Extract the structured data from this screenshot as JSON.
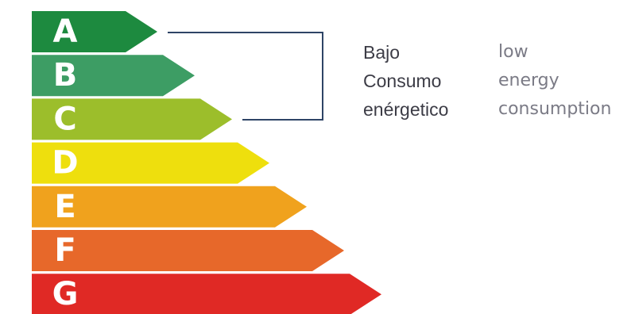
{
  "ratings": [
    {
      "letter": "A",
      "color": "#1d8a3f"
    },
    {
      "letter": "B",
      "color": "#3d9d64"
    },
    {
      "letter": "C",
      "color": "#9cbe2b"
    },
    {
      "letter": "D",
      "color": "#eedf0d"
    },
    {
      "letter": "E",
      "color": "#f0a21d"
    },
    {
      "letter": "F",
      "color": "#e7682a"
    },
    {
      "letter": "G",
      "color": "#e02925"
    }
  ],
  "bracket_color": "#2e4466",
  "legend": {
    "spanish": [
      "Bajo",
      "Consumo",
      "enérgetico"
    ],
    "english": [
      "low",
      "energy",
      "consumption"
    ]
  }
}
